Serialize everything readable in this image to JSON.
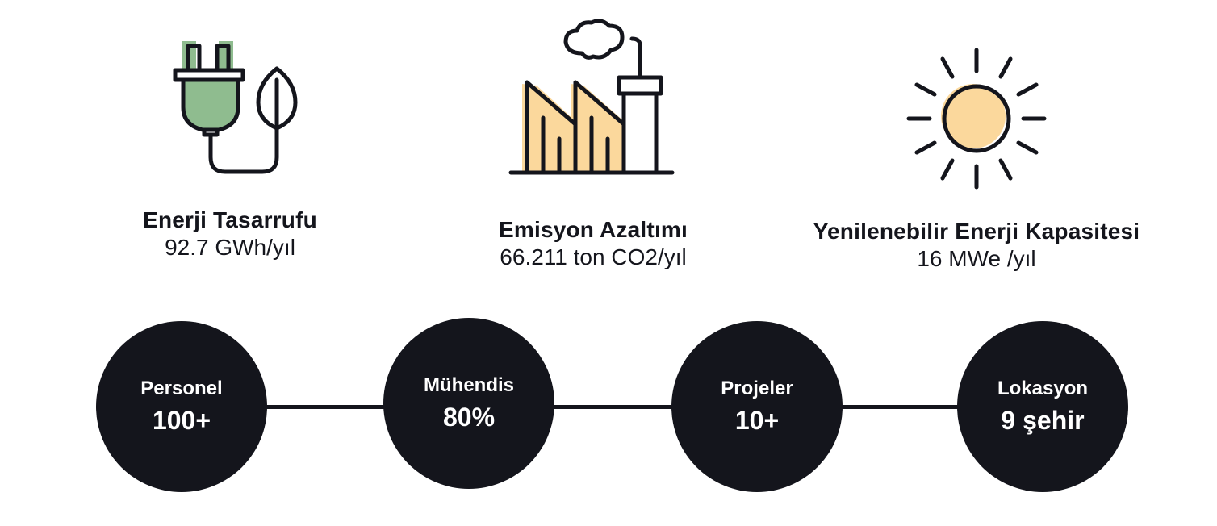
{
  "stats": [
    {
      "title": "Enerji Tasarrufu",
      "value": "92.7 GWh/yıl",
      "icon": "plug-leaf-icon"
    },
    {
      "title": "Emisyon Azaltımı",
      "value": "66.211 ton CO2/yıl",
      "icon": "factory-icon"
    },
    {
      "title": "Yenilenebilir Enerji Kapasitesi",
      "value": "16 MWe /yıl",
      "icon": "sun-icon"
    }
  ],
  "milestones": [
    {
      "label": "Personel",
      "value": "100+"
    },
    {
      "label": "Mühendis",
      "value": "80%"
    },
    {
      "label": "Projeler",
      "value": "10+"
    },
    {
      "label": "Lokasyon",
      "value": "9 şehir"
    }
  ],
  "colors": {
    "dark": "#14151c",
    "green": "#8fbc8f",
    "amber": "#fbd89c"
  }
}
